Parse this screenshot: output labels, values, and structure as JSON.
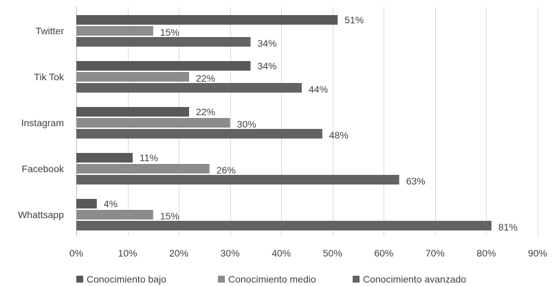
{
  "chart_data": {
    "type": "bar",
    "orientation": "horizontal",
    "categories": [
      "Twitter",
      "Tik Tok",
      "Instagram",
      "Facebook",
      "Whattsapp"
    ],
    "series": [
      {
        "name": "Conocimiento bajo",
        "values": [
          51,
          34,
          22,
          11,
          4
        ],
        "labels": [
          "51%",
          "34%",
          "22%",
          "11%",
          "4%"
        ],
        "color": "#595959"
      },
      {
        "name": "Conocimiento medio",
        "values": [
          15,
          22,
          30,
          26,
          15
        ],
        "labels": [
          "15%",
          "22%",
          "30%",
          "26%",
          "15%"
        ],
        "color": "#8c8c8c"
      },
      {
        "name": "Conocimiento avanzado",
        "values": [
          34,
          44,
          48,
          63,
          81
        ],
        "labels": [
          "34%",
          "44%",
          "48%",
          "63%",
          "81%"
        ],
        "color": "#636363"
      }
    ],
    "xlim": [
      0,
      90
    ],
    "x_ticks": [
      "0%",
      "10%",
      "20%",
      "30%",
      "40%",
      "50%",
      "60%",
      "70%",
      "80%",
      "90%"
    ],
    "grid": "vertical",
    "legend": "bottom"
  }
}
